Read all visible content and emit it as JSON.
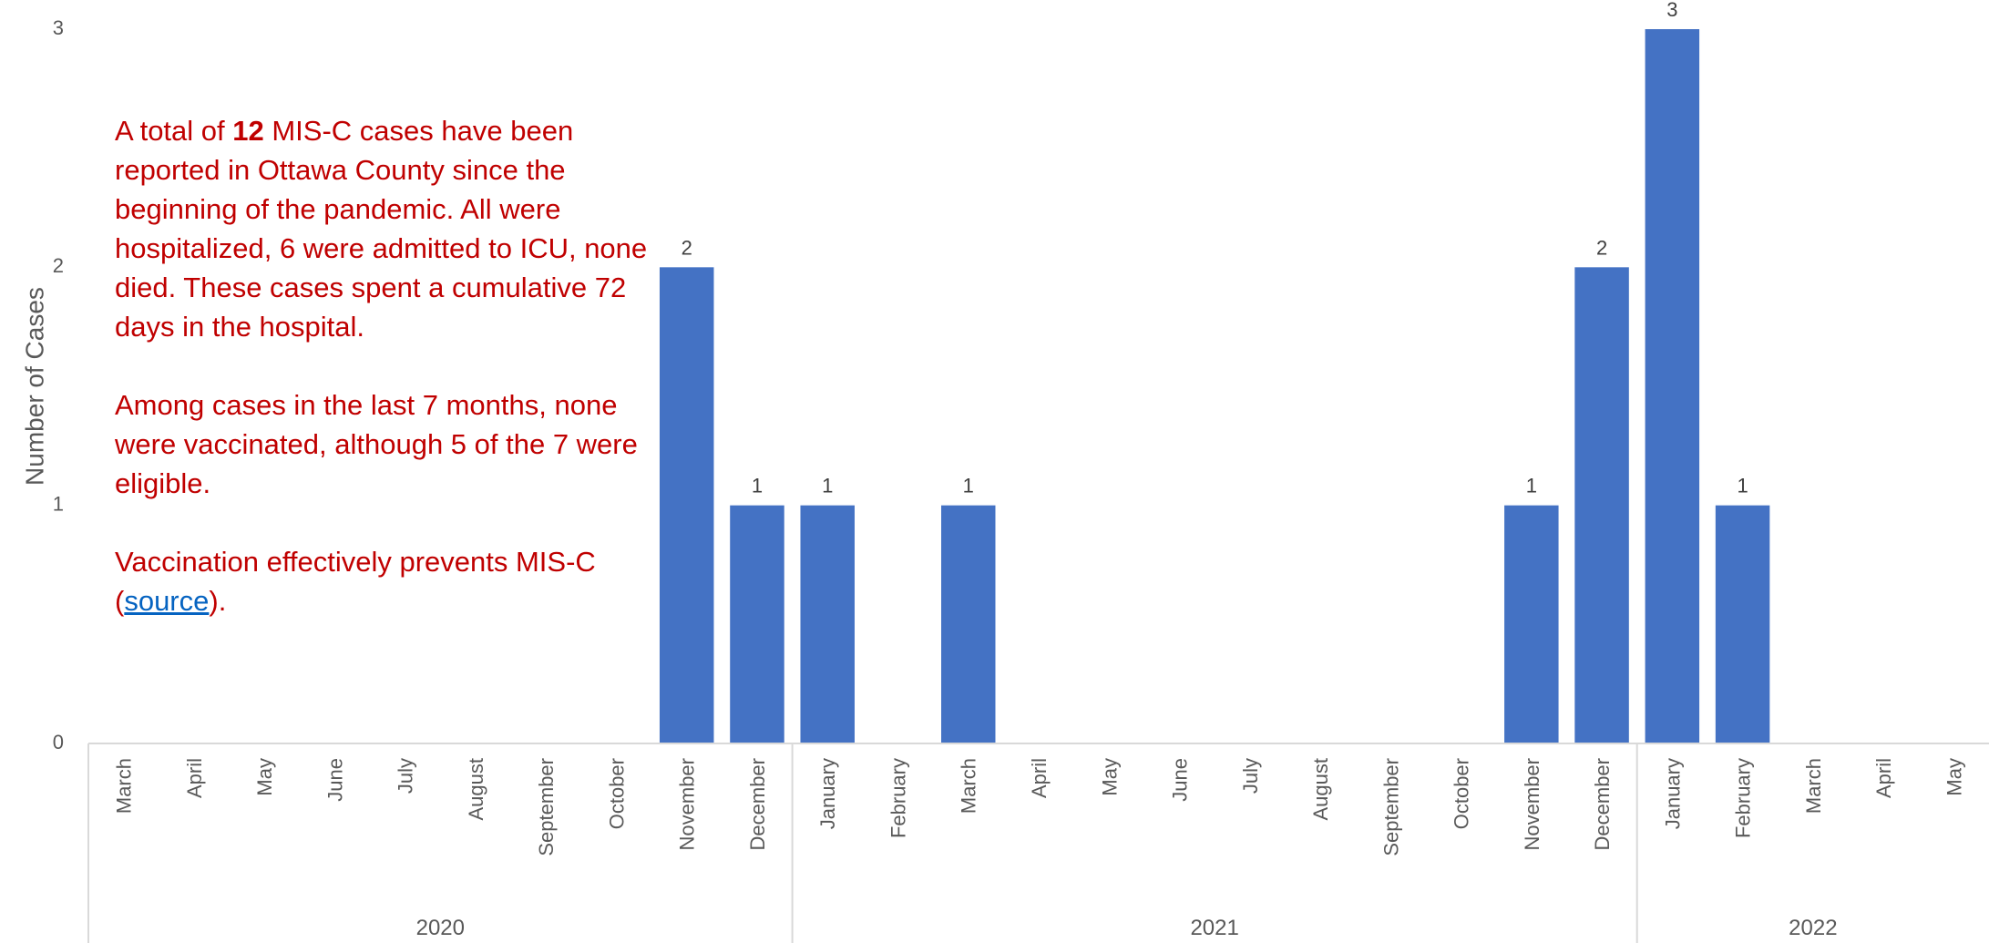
{
  "chart_data": {
    "type": "bar",
    "ylabel": "Number of Cases",
    "xlabel": "",
    "ylim": [
      0,
      3
    ],
    "yticks": [
      0,
      1,
      2,
      3
    ],
    "bar_color": "#4472c4",
    "data_labels": true,
    "categories": [
      {
        "month": "March",
        "year": "2020",
        "value": 0
      },
      {
        "month": "April",
        "year": "2020",
        "value": 0
      },
      {
        "month": "May",
        "year": "2020",
        "value": 0
      },
      {
        "month": "June",
        "year": "2020",
        "value": 0
      },
      {
        "month": "July",
        "year": "2020",
        "value": 0
      },
      {
        "month": "August",
        "year": "2020",
        "value": 0
      },
      {
        "month": "September",
        "year": "2020",
        "value": 0
      },
      {
        "month": "October",
        "year": "2020",
        "value": 0
      },
      {
        "month": "November",
        "year": "2020",
        "value": 2
      },
      {
        "month": "December",
        "year": "2020",
        "value": 1
      },
      {
        "month": "January",
        "year": "2021",
        "value": 1
      },
      {
        "month": "February",
        "year": "2021",
        "value": 0
      },
      {
        "month": "March",
        "year": "2021",
        "value": 1
      },
      {
        "month": "April",
        "year": "2021",
        "value": 0
      },
      {
        "month": "May",
        "year": "2021",
        "value": 0
      },
      {
        "month": "June",
        "year": "2021",
        "value": 0
      },
      {
        "month": "July",
        "year": "2021",
        "value": 0
      },
      {
        "month": "August",
        "year": "2021",
        "value": 0
      },
      {
        "month": "September",
        "year": "2021",
        "value": 0
      },
      {
        "month": "October",
        "year": "2021",
        "value": 0
      },
      {
        "month": "November",
        "year": "2021",
        "value": 1
      },
      {
        "month": "December",
        "year": "2021",
        "value": 2
      },
      {
        "month": "January",
        "year": "2022",
        "value": 3
      },
      {
        "month": "February",
        "year": "2022",
        "value": 1
      },
      {
        "month": "March",
        "year": "2022",
        "value": 0
      },
      {
        "month": "April",
        "year": "2022",
        "value": 0
      },
      {
        "month": "May",
        "year": "2022",
        "value": 0
      }
    ],
    "years": [
      "2020",
      "2021",
      "2022"
    ]
  },
  "annotation": {
    "p1_pre": "A total of ",
    "p1_bold": "12",
    "p1_post": " MIS-C cases have been reported in Ottawa County since the beginning of the pandemic. All were hospitalized, 6 were admitted to ICU, none died. These cases spent a cumulative 72 days in the hospital.",
    "p2": "Among cases in the last 7 months, none were vaccinated, although 5 of the 7 were eligible.",
    "p3_pre": "Vaccination effectively prevents MIS-C (",
    "p3_link": "source",
    "p3_post": ")."
  }
}
